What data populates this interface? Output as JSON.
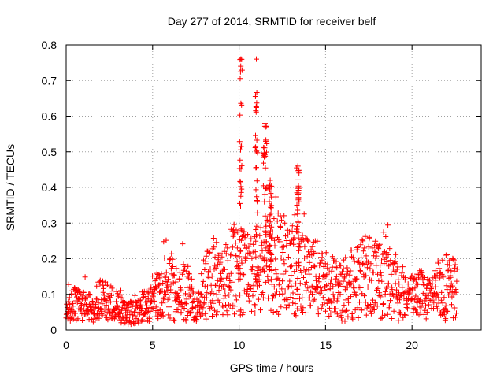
{
  "chart_data": {
    "type": "scatter",
    "title": "Day 277 of 2014, SRMTID for receiver belf",
    "xlabel": "GPS time / hours",
    "ylabel": "SRMTID / TECUs",
    "xlim": [
      0,
      24
    ],
    "ylim": [
      0,
      0.8
    ],
    "xticks": [
      0,
      5,
      10,
      15,
      20
    ],
    "xtick_labels": [
      "0",
      "5",
      "10",
      "15",
      "20"
    ],
    "yticks": [
      0,
      0.1,
      0.2,
      0.3,
      0.4,
      0.5,
      0.6,
      0.7,
      0.8
    ],
    "ytick_labels": [
      "0",
      "0.1",
      "0.2",
      "0.3",
      "0.4",
      "0.5",
      "0.6",
      "0.7",
      "0.8"
    ],
    "grid": true,
    "marker": "+",
    "colors": {
      "series": "#ff0000",
      "grid": "#a0a0a0",
      "axis": "#000000"
    },
    "series": [
      {
        "name": "SRMTID",
        "x_start": 0,
        "x_end": 22.6,
        "n_points": 1400,
        "baseline": [
          [
            0,
            0.04
          ],
          [
            0.5,
            0.07
          ],
          [
            1.0,
            0.06
          ],
          [
            1.5,
            0.055
          ],
          [
            2.0,
            0.09
          ],
          [
            2.5,
            0.07
          ],
          [
            3.0,
            0.06
          ],
          [
            3.5,
            0.04
          ],
          [
            4.0,
            0.05
          ],
          [
            4.5,
            0.06
          ],
          [
            5.0,
            0.07
          ],
          [
            5.5,
            0.1
          ],
          [
            6.0,
            0.12
          ],
          [
            6.5,
            0.09
          ],
          [
            7.0,
            0.11
          ],
          [
            7.5,
            0.04
          ],
          [
            8.0,
            0.12
          ],
          [
            8.5,
            0.14
          ],
          [
            9.0,
            0.13
          ],
          [
            9.5,
            0.15
          ],
          [
            10.0,
            0.16
          ],
          [
            10.5,
            0.14
          ],
          [
            11.0,
            0.15
          ],
          [
            11.5,
            0.17
          ],
          [
            12.0,
            0.18
          ],
          [
            12.5,
            0.17
          ],
          [
            13.0,
            0.15
          ],
          [
            13.5,
            0.16
          ],
          [
            14.0,
            0.14
          ],
          [
            14.5,
            0.13
          ],
          [
            15.0,
            0.12
          ],
          [
            15.5,
            0.11
          ],
          [
            16.0,
            0.1
          ],
          [
            16.5,
            0.12
          ],
          [
            17.0,
            0.13
          ],
          [
            17.5,
            0.14
          ],
          [
            18.0,
            0.13
          ],
          [
            18.5,
            0.15
          ],
          [
            19.0,
            0.12
          ],
          [
            19.5,
            0.1
          ],
          [
            20.0,
            0.09
          ],
          [
            20.5,
            0.1
          ],
          [
            21.0,
            0.08
          ],
          [
            21.5,
            0.1
          ],
          [
            22.0,
            0.11
          ],
          [
            22.6,
            0.1
          ]
        ],
        "spikes": [
          {
            "x": 10.1,
            "width": 0.15,
            "peak": 0.76
          },
          {
            "x": 11.0,
            "width": 0.15,
            "peak": 0.76
          },
          {
            "x": 11.5,
            "width": 0.2,
            "peak": 0.58
          },
          {
            "x": 11.8,
            "width": 0.15,
            "peak": 0.42
          },
          {
            "x": 13.4,
            "width": 0.15,
            "peak": 0.46
          }
        ]
      }
    ]
  }
}
